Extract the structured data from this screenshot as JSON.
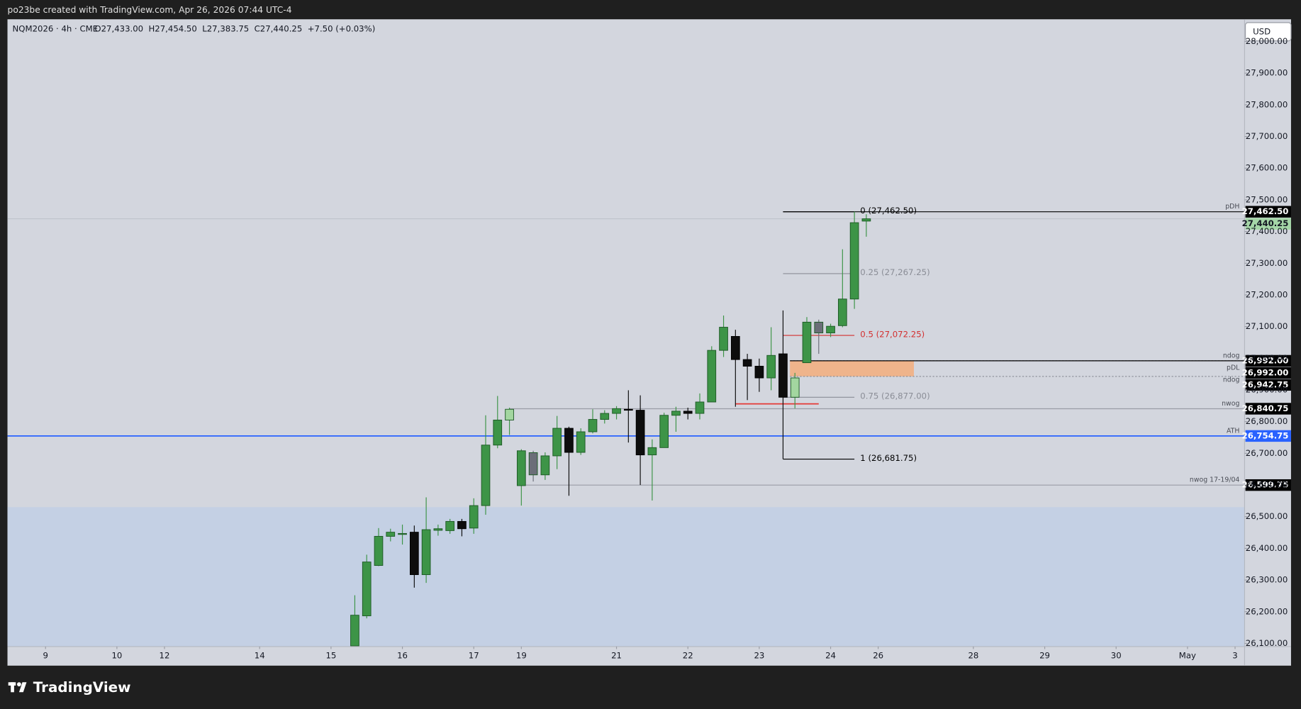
{
  "credit": "po23be created with TradingView.com, Apr 26, 2026 07:44 UTC-4",
  "currency": "USD",
  "brand": "TradingView",
  "chart_data": {
    "type": "candlestick",
    "title": "NQM2026 · 4h · CME",
    "subtitle": "O27,433.00  H27,454.50  L27,383.75  C27,440.25  +7.50 (+0.03%)",
    "grid": false,
    "xlim": [
      -0.2,
      103.8
    ],
    "ylim": [
      26090,
      28070
    ],
    "xticks": [
      {
        "value": 3,
        "label": "9"
      },
      {
        "value": 9,
        "label": "10"
      },
      {
        "value": 13,
        "label": "12"
      },
      {
        "value": 21,
        "label": "14"
      },
      {
        "value": 27,
        "label": "15"
      },
      {
        "value": 33,
        "label": "16"
      },
      {
        "value": 39,
        "label": "17"
      },
      {
        "value": 43,
        "label": "19"
      },
      {
        "value": 51,
        "label": "21"
      },
      {
        "value": 57,
        "label": "22"
      },
      {
        "value": 63,
        "label": "23"
      },
      {
        "value": 69,
        "label": "24"
      },
      {
        "value": 73,
        "label": "26"
      },
      {
        "value": 81,
        "label": "28"
      },
      {
        "value": 87,
        "label": "29"
      },
      {
        "value": 93,
        "label": "30"
      },
      {
        "value": 99,
        "label": "May"
      },
      {
        "value": 103,
        "label": "3"
      }
    ],
    "yticks": [
      {
        "value": 26100,
        "label": "26,100.00"
      },
      {
        "value": 26200,
        "label": "26,200.00"
      },
      {
        "value": 26300,
        "label": "26,300.00"
      },
      {
        "value": 26400,
        "label": "26,400.00"
      },
      {
        "value": 26500,
        "label": "26,500.00"
      },
      {
        "value": 26600,
        "label": "26,600.00"
      },
      {
        "value": 26700,
        "label": "26,700.00"
      },
      {
        "value": 26800,
        "label": "26,800.00"
      },
      {
        "value": 26900,
        "label": "26,900.00"
      },
      {
        "value": 27000,
        "label": "27,000.00"
      },
      {
        "value": 27100,
        "label": "27,100.00"
      },
      {
        "value": 27200,
        "label": "27,200.00"
      },
      {
        "value": 27300,
        "label": "27,300.00"
      },
      {
        "value": 27400,
        "label": "27,400.00"
      },
      {
        "value": 27500,
        "label": "27,500.00"
      },
      {
        "value": 27600,
        "label": "27,600.00"
      },
      {
        "value": 27700,
        "label": "27,700.00"
      },
      {
        "value": 27800,
        "label": "27,800.00"
      },
      {
        "value": 27900,
        "label": "27,900.00"
      },
      {
        "value": 28000,
        "label": "28,000.00"
      }
    ],
    "x": [
      29,
      30,
      31,
      32,
      33,
      34,
      35,
      36,
      37,
      38,
      39,
      40,
      41,
      42,
      43,
      44,
      45,
      46,
      47,
      48,
      49,
      50,
      51,
      52,
      53,
      54,
      55,
      56,
      57,
      58,
      59,
      60,
      61,
      62,
      63,
      64,
      65,
      66,
      67,
      68,
      69,
      70,
      71,
      72
    ],
    "open": [
      26092,
      26187,
      26346,
      26438,
      26444,
      26451,
      26317,
      26457,
      26456,
      26485,
      26464,
      26535,
      26726,
      26805,
      26598,
      26702,
      26632,
      26692,
      26779,
      26703,
      26768,
      26807,
      26826,
      26839,
      26836,
      26695,
      26718,
      26820,
      26833,
      26826,
      26862,
      27025,
      27069,
      26996,
      26975,
      26938,
      27014,
      26877,
      26986,
      27114,
      27080,
      27103,
      27187,
      27433
    ],
    "high": [
      26252,
      26380,
      26464,
      26462,
      26475,
      26472,
      26561,
      26475,
      26493,
      26493,
      26558,
      26820,
      26881,
      26844,
      26713,
      26708,
      26703,
      26818,
      26784,
      26779,
      26839,
      26836,
      26849,
      26899,
      26883,
      26744,
      26828,
      26847,
      26844,
      26889,
      27038,
      27135,
      27090,
      27014,
      26999,
      27098,
      27151,
      26954,
      27130,
      27122,
      27109,
      27344,
      27462.5,
      27454.5
    ],
    "low": [
      26080,
      26179,
      26344,
      26422,
      26412,
      26276,
      26291,
      26440,
      26446,
      26438,
      26446,
      26506,
      26716,
      26758,
      26535,
      26611,
      26616,
      26650,
      26566,
      26695,
      26763,
      26794,
      26807,
      26734,
      26600,
      26551,
      26718,
      26768,
      26807,
      26807,
      26862,
      27004,
      26847,
      26868,
      26894,
      26899,
      26681.75,
      26842,
      26986,
      27014,
      27067,
      27098,
      27156,
      27383.75
    ],
    "close": [
      26189,
      26357,
      26438,
      26451,
      26447,
      26317,
      26459,
      26462,
      26485,
      26462,
      26535,
      26726,
      26805,
      26839,
      26708,
      26632,
      26692,
      26779,
      26703,
      26768,
      26807,
      26826,
      26841,
      26836,
      26695,
      26718,
      26820,
      26833,
      26826,
      26862,
      27025,
      27098,
      26996,
      26975,
      26938,
      27009,
      26877,
      26938,
      27114,
      27080,
      27101,
      27187,
      27428,
      27440.25
    ],
    "colors": [
      "#3d9447",
      "#3d9447",
      "#3d9447",
      "#3d9447",
      "#3d9447",
      "#0d0d0d",
      "#3d9447",
      "#3d9447",
      "#3d9447",
      "#0d0d0d",
      "#3d9447",
      "#3d9447",
      "#3d9447",
      "#a3d6a0",
      "#3d9447",
      "#6b6e78",
      "#3d9447",
      "#3d9447",
      "#0d0d0d",
      "#3d9447",
      "#3d9447",
      "#3d9447",
      "#3d9447",
      "#0d0d0d",
      "#0d0d0d",
      "#3d9447",
      "#3d9447",
      "#3d9447",
      "#0d0d0d",
      "#3d9447",
      "#3d9447",
      "#3d9447",
      "#0d0d0d",
      "#0d0d0d",
      "#0d0d0d",
      "#3d9447",
      "#0d0d0d",
      "#a3d6a0",
      "#3d9447",
      "#6b6e78",
      "#3d9447",
      "#3d9447",
      "#3d9447",
      "#3d9447"
    ],
    "last_price": {
      "value": 27440.25,
      "label": "27,440.25",
      "color": "#a5d6a7"
    },
    "zones": [
      {
        "high": 26530,
        "color": "#c4d0e4"
      },
      {
        "low": 26942.75,
        "high": 26992,
        "color": "#efb48b"
      }
    ],
    "levels": [
      {
        "name": "pDH",
        "value": 27462.5,
        "label": "27,462.50",
        "color": "#000000",
        "tag_color": "#000000"
      },
      {
        "name": "ndog",
        "value": 26992,
        "label": "26,992.00",
        "color": "#8a8d96",
        "tag_color": "#000000"
      },
      {
        "name": "pDL",
        "value": 26992,
        "label": "26,992.00",
        "color": "#000000",
        "tag_color": "#000000"
      },
      {
        "name": "ndog",
        "value": 26942.75,
        "label": "26,942.75",
        "color": "#8a8d96",
        "tag_color": "#000000"
      },
      {
        "name": "nwog",
        "value": 26840.75,
        "label": "26,840.75",
        "color": "#9a9da6",
        "tag_color": "#000000"
      },
      {
        "name": "ATH",
        "value": 26754.75,
        "label": "26,754.75",
        "color": "#2962ff",
        "tag_color": "#2962ff"
      },
      {
        "name": "nwog 17-19/04",
        "value": 26599.75,
        "label": "26,599.75",
        "color": "#9a9da6",
        "tag_color": "#000000"
      }
    ],
    "fib": [
      {
        "label": "0 (27,462.50)",
        "value": 27462.5,
        "color": "#000000"
      },
      {
        "label": "0.25 (27,267.25)",
        "value": 27267.25,
        "color": "#8a8d96"
      },
      {
        "label": "0.5 (27,072.25)",
        "value": 27072.25,
        "color": "#d32f2f"
      },
      {
        "label": "0.75 (26,877.00)",
        "value": 26877,
        "color": "#8a8d96"
      },
      {
        "label": "1 (26,681.75)",
        "value": 26681.75,
        "color": "#000000"
      }
    ],
    "drawings": [
      {
        "value": 26856,
        "color": "#e53935"
      }
    ]
  }
}
